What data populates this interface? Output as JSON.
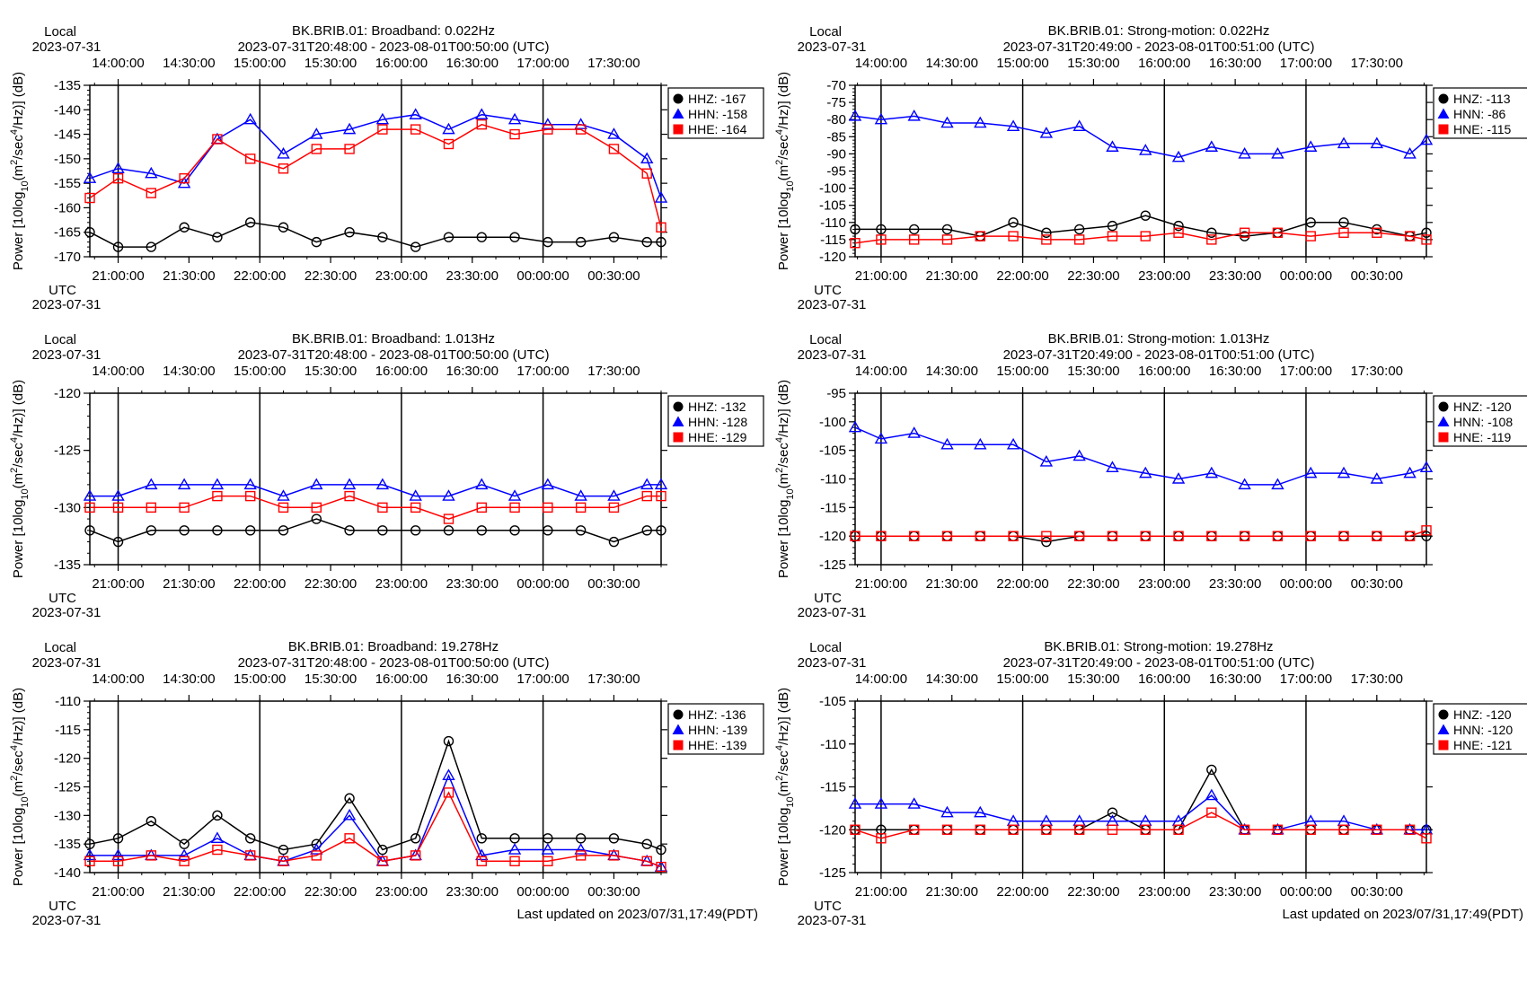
{
  "figure": {
    "y_axis_label": "Power [10log10(m2/sec4/Hz)] (dB)",
    "local_label": "Local",
    "utc_label": "UTC",
    "date_label": "2023-07-31",
    "footer": "Last updated on 2023/07/31,17:49(PDT)"
  },
  "colors": {
    "HHZ": "#000000",
    "HHN": "#0000ff",
    "HHE": "#ff0000"
  },
  "chart_data": [
    {
      "type": "line",
      "title": "BK.BRIB.01: Broadband: 0.022Hz",
      "subtitle": "2023-07-31T20:48:00 - 2023-08-01T00:50:00 (UTC)",
      "ylabel": "Power [10log10(m2/sec4/Hz)] (dB)",
      "xlabel": "UTC",
      "x_range_utc": [
        "20:48:00",
        "00:50:00"
      ],
      "x": [
        "20:48",
        "21:00",
        "21:14",
        "21:28",
        "21:42",
        "21:56",
        "22:10",
        "22:24",
        "22:38",
        "22:52",
        "23:06",
        "23:20",
        "23:34",
        "23:48",
        "00:02",
        "00:16",
        "00:30",
        "00:44",
        "00:50"
      ],
      "ylim": [
        -170,
        -135
      ],
      "yticks": [
        -135,
        -140,
        -145,
        -150,
        -155,
        -160,
        -165,
        -170
      ],
      "local_ticks": [
        "14:00:00",
        "14:30:00",
        "15:00:00",
        "15:30:00",
        "16:00:00",
        "16:30:00",
        "17:00:00",
        "17:30:00"
      ],
      "utc_ticks": [
        "21:00:00",
        "21:30:00",
        "22:00:00",
        "22:30:00",
        "23:00:00",
        "23:30:00",
        "00:00:00",
        "00:30:00"
      ],
      "grid": "vertical lines at each hour",
      "legend_position": "right",
      "series": [
        {
          "name": "HHZ",
          "marker": "circle",
          "legend": "HHZ: -167",
          "values": [
            -165,
            -168,
            -168,
            -164,
            -166,
            -163,
            -164,
            -167,
            -165,
            -166,
            -168,
            -166,
            -166,
            -166,
            -167,
            -167,
            -166,
            -167,
            -167
          ]
        },
        {
          "name": "HHN",
          "marker": "triangle",
          "legend": "HHN: -158",
          "values": [
            -154,
            -152,
            -153,
            -155,
            -146,
            -142,
            -149,
            -145,
            -144,
            -142,
            -141,
            -144,
            -141,
            -142,
            -143,
            -143,
            -145,
            -150,
            -158
          ]
        },
        {
          "name": "HHE",
          "marker": "square",
          "legend": "HHE: -164",
          "values": [
            -158,
            -154,
            -157,
            -154,
            -146,
            -150,
            -152,
            -148,
            -148,
            -144,
            -144,
            -147,
            -143,
            -145,
            -144,
            -144,
            -148,
            -153,
            -164
          ]
        }
      ],
      "footer": ""
    },
    {
      "type": "line",
      "title": "BK.BRIB.01: Strong-motion: 0.022Hz",
      "subtitle": "2023-07-31T20:49:00 - 2023-08-01T00:51:00 (UTC)",
      "ylabel": "Power [10log10(m2/sec4/Hz)] (dB)",
      "xlabel": "UTC",
      "x_range_utc": [
        "20:49:00",
        "00:51:00"
      ],
      "x": [
        "20:49",
        "21:00",
        "21:14",
        "21:28",
        "21:42",
        "21:56",
        "22:10",
        "22:24",
        "22:38",
        "22:52",
        "23:06",
        "23:20",
        "23:34",
        "23:48",
        "00:02",
        "00:16",
        "00:30",
        "00:44",
        "00:51"
      ],
      "ylim": [
        -120,
        -70
      ],
      "yticks": [
        -70,
        -75,
        -80,
        -85,
        -90,
        -95,
        -100,
        -105,
        -110,
        -115,
        -120
      ],
      "local_ticks": [
        "14:00:00",
        "14:30:00",
        "15:00:00",
        "15:30:00",
        "16:00:00",
        "16:30:00",
        "17:00:00",
        "17:30:00"
      ],
      "utc_ticks": [
        "21:00:00",
        "21:30:00",
        "22:00:00",
        "22:30:00",
        "23:00:00",
        "23:30:00",
        "00:00:00",
        "00:30:00"
      ],
      "grid": "vertical lines at each hour",
      "legend_position": "right",
      "series": [
        {
          "name": "HNZ",
          "marker": "circle",
          "legend": "HNZ: -113",
          "values": [
            -112,
            -112,
            -112,
            -112,
            -114,
            -110,
            -113,
            -112,
            -111,
            -108,
            -111,
            -113,
            -114,
            -113,
            -110,
            -110,
            -112,
            -114,
            -113
          ]
        },
        {
          "name": "HNN",
          "marker": "triangle",
          "legend": "HNN: -86",
          "values": [
            -79,
            -80,
            -79,
            -81,
            -81,
            -82,
            -84,
            -82,
            -88,
            -89,
            -91,
            -88,
            -90,
            -90,
            -88,
            -87,
            -87,
            -90,
            -86
          ]
        },
        {
          "name": "HNE",
          "marker": "square",
          "legend": "HNE: -115",
          "values": [
            -116,
            -115,
            -115,
            -115,
            -114,
            -114,
            -115,
            -115,
            -114,
            -114,
            -113,
            -115,
            -113,
            -113,
            -114,
            -113,
            -113,
            -114,
            -115
          ]
        }
      ],
      "footer": ""
    },
    {
      "type": "line",
      "title": "BK.BRIB.01: Broadband: 1.013Hz",
      "subtitle": "2023-07-31T20:48:00 - 2023-08-01T00:50:00 (UTC)",
      "ylabel": "Power [10log10(m2/sec4/Hz)] (dB)",
      "xlabel": "UTC",
      "x_range_utc": [
        "20:48:00",
        "00:50:00"
      ],
      "x": [
        "20:48",
        "21:00",
        "21:14",
        "21:28",
        "21:42",
        "21:56",
        "22:10",
        "22:24",
        "22:38",
        "22:52",
        "23:06",
        "23:20",
        "23:34",
        "23:48",
        "00:02",
        "00:16",
        "00:30",
        "00:44",
        "00:50"
      ],
      "ylim": [
        -135,
        -120
      ],
      "yticks": [
        -120,
        -125,
        -130,
        -135
      ],
      "local_ticks": [
        "14:00:00",
        "14:30:00",
        "15:00:00",
        "15:30:00",
        "16:00:00",
        "16:30:00",
        "17:00:00",
        "17:30:00"
      ],
      "utc_ticks": [
        "21:00:00",
        "21:30:00",
        "22:00:00",
        "22:30:00",
        "23:00:00",
        "23:30:00",
        "00:00:00",
        "00:30:00"
      ],
      "grid": "vertical lines at each hour",
      "legend_position": "right",
      "series": [
        {
          "name": "HHZ",
          "marker": "circle",
          "legend": "HHZ: -132",
          "values": [
            -132,
            -133,
            -132,
            -132,
            -132,
            -132,
            -132,
            -131,
            -132,
            -132,
            -132,
            -132,
            -132,
            -132,
            -132,
            -132,
            -133,
            -132,
            -132
          ]
        },
        {
          "name": "HHN",
          "marker": "triangle",
          "legend": "HHN: -128",
          "values": [
            -129,
            -129,
            -128,
            -128,
            -128,
            -128,
            -129,
            -128,
            -128,
            -128,
            -129,
            -129,
            -128,
            -129,
            -128,
            -129,
            -129,
            -128,
            -128
          ]
        },
        {
          "name": "HHE",
          "marker": "square",
          "legend": "HHE: -129",
          "values": [
            -130,
            -130,
            -130,
            -130,
            -129,
            -129,
            -130,
            -130,
            -129,
            -130,
            -130,
            -131,
            -130,
            -130,
            -130,
            -130,
            -130,
            -129,
            -129
          ]
        }
      ],
      "footer": ""
    },
    {
      "type": "line",
      "title": "BK.BRIB.01: Strong-motion: 1.013Hz",
      "subtitle": "2023-07-31T20:49:00 - 2023-08-01T00:51:00 (UTC)",
      "ylabel": "Power [10log10(m2/sec4/Hz)] (dB)",
      "xlabel": "UTC",
      "x_range_utc": [
        "20:49:00",
        "00:51:00"
      ],
      "x": [
        "20:49",
        "21:00",
        "21:14",
        "21:28",
        "21:42",
        "21:56",
        "22:10",
        "22:24",
        "22:38",
        "22:52",
        "23:06",
        "23:20",
        "23:34",
        "23:48",
        "00:02",
        "00:16",
        "00:30",
        "00:44",
        "00:51"
      ],
      "ylim": [
        -125,
        -95
      ],
      "yticks": [
        -95,
        -100,
        -105,
        -110,
        -115,
        -120,
        -125
      ],
      "local_ticks": [
        "14:00:00",
        "14:30:00",
        "15:00:00",
        "15:30:00",
        "16:00:00",
        "16:30:00",
        "17:00:00",
        "17:30:00"
      ],
      "utc_ticks": [
        "21:00:00",
        "21:30:00",
        "22:00:00",
        "22:30:00",
        "23:00:00",
        "23:30:00",
        "00:00:00",
        "00:30:00"
      ],
      "grid": "vertical lines at each hour",
      "legend_position": "right",
      "series": [
        {
          "name": "HNZ",
          "marker": "circle",
          "legend": "HNZ: -120",
          "values": [
            -120,
            -120,
            -120,
            -120,
            -120,
            -120,
            -121,
            -120,
            -120,
            -120,
            -120,
            -120,
            -120,
            -120,
            -120,
            -120,
            -120,
            -120,
            -120
          ]
        },
        {
          "name": "HNN",
          "marker": "triangle",
          "legend": "HNN: -108",
          "values": [
            -101,
            -103,
            -102,
            -104,
            -104,
            -104,
            -107,
            -106,
            -108,
            -109,
            -110,
            -109,
            -111,
            -111,
            -109,
            -109,
            -110,
            -109,
            -108
          ]
        },
        {
          "name": "HNE",
          "marker": "square",
          "legend": "HNE: -119",
          "values": [
            -120,
            -120,
            -120,
            -120,
            -120,
            -120,
            -120,
            -120,
            -120,
            -120,
            -120,
            -120,
            -120,
            -120,
            -120,
            -120,
            -120,
            -120,
            -119
          ]
        }
      ],
      "footer": ""
    },
    {
      "type": "line",
      "title": "BK.BRIB.01: Broadband: 19.278Hz",
      "subtitle": "2023-07-31T20:48:00 - 2023-08-01T00:50:00 (UTC)",
      "ylabel": "Power [10log10(m2/sec4/Hz)] (dB)",
      "xlabel": "UTC",
      "x_range_utc": [
        "20:48:00",
        "00:50:00"
      ],
      "x": [
        "20:48",
        "21:00",
        "21:14",
        "21:28",
        "21:42",
        "21:56",
        "22:10",
        "22:24",
        "22:38",
        "22:52",
        "23:06",
        "23:20",
        "23:34",
        "23:48",
        "00:02",
        "00:16",
        "00:30",
        "00:44",
        "00:50"
      ],
      "ylim": [
        -140,
        -110
      ],
      "yticks": [
        -110,
        -115,
        -120,
        -125,
        -130,
        -135,
        -140
      ],
      "local_ticks": [
        "14:00:00",
        "14:30:00",
        "15:00:00",
        "15:30:00",
        "16:00:00",
        "16:30:00",
        "17:00:00",
        "17:30:00"
      ],
      "utc_ticks": [
        "21:00:00",
        "21:30:00",
        "22:00:00",
        "22:30:00",
        "23:00:00",
        "23:30:00",
        "00:00:00",
        "00:30:00"
      ],
      "grid": "vertical lines at each hour",
      "legend_position": "right",
      "series": [
        {
          "name": "HHZ",
          "marker": "circle",
          "legend": "HHZ: -136",
          "values": [
            -135,
            -134,
            -131,
            -135,
            -130,
            -134,
            -136,
            -135,
            -127,
            -136,
            -134,
            -117,
            -134,
            -134,
            -134,
            -134,
            -134,
            -135,
            -136
          ]
        },
        {
          "name": "HHN",
          "marker": "triangle",
          "legend": "HHN: -139",
          "values": [
            -137,
            -137,
            -137,
            -137,
            -134,
            -137,
            -138,
            -136,
            -130,
            -138,
            -137,
            -123,
            -137,
            -136,
            -136,
            -136,
            -137,
            -138,
            -139
          ]
        },
        {
          "name": "HHE",
          "marker": "square",
          "legend": "HHE: -139",
          "values": [
            -138,
            -138,
            -137,
            -138,
            -136,
            -137,
            -138,
            -137,
            -134,
            -138,
            -137,
            -126,
            -138,
            -138,
            -138,
            -137,
            -137,
            -138,
            -139
          ]
        }
      ],
      "footer": "Last updated on 2023/07/31,17:49(PDT)"
    },
    {
      "type": "line",
      "title": "BK.BRIB.01: Strong-motion: 19.278Hz",
      "subtitle": "2023-07-31T20:49:00 - 2023-08-01T00:51:00 (UTC)",
      "ylabel": "Power [10log10(m2/sec4/Hz)] (dB)",
      "xlabel": "UTC",
      "x_range_utc": [
        "20:49:00",
        "00:51:00"
      ],
      "x": [
        "20:49",
        "21:00",
        "21:14",
        "21:28",
        "21:42",
        "21:56",
        "22:10",
        "22:24",
        "22:38",
        "22:52",
        "23:06",
        "23:20",
        "23:34",
        "23:48",
        "00:02",
        "00:16",
        "00:30",
        "00:44",
        "00:51"
      ],
      "ylim": [
        -125,
        -105
      ],
      "yticks": [
        -105,
        -110,
        -115,
        -120,
        -125
      ],
      "local_ticks": [
        "14:00:00",
        "14:30:00",
        "15:00:00",
        "15:30:00",
        "16:00:00",
        "16:30:00",
        "17:00:00",
        "17:30:00"
      ],
      "utc_ticks": [
        "21:00:00",
        "21:30:00",
        "22:00:00",
        "22:30:00",
        "23:00:00",
        "23:30:00",
        "00:00:00",
        "00:30:00"
      ],
      "grid": "vertical lines at each hour",
      "legend_position": "right",
      "series": [
        {
          "name": "HNZ",
          "marker": "circle",
          "legend": "HNZ: -120",
          "values": [
            -120,
            -120,
            -120,
            -120,
            -120,
            -120,
            -120,
            -120,
            -118,
            -120,
            -120,
            -113,
            -120,
            -120,
            -120,
            -120,
            -120,
            -120,
            -120
          ]
        },
        {
          "name": "HNN",
          "marker": "triangle",
          "legend": "HNN: -120",
          "values": [
            -117,
            -117,
            -117,
            -118,
            -118,
            -119,
            -119,
            -119,
            -119,
            -119,
            -119,
            -116,
            -120,
            -120,
            -119,
            -119,
            -120,
            -120,
            -120
          ]
        },
        {
          "name": "HNE",
          "marker": "square",
          "legend": "HNE: -121",
          "values": [
            -120,
            -121,
            -120,
            -120,
            -120,
            -120,
            -120,
            -120,
            -120,
            -120,
            -120,
            -118,
            -120,
            -120,
            -120,
            -120,
            -120,
            -120,
            -121
          ]
        }
      ],
      "footer": "Last updated on 2023/07/31,17:49(PDT)"
    }
  ]
}
